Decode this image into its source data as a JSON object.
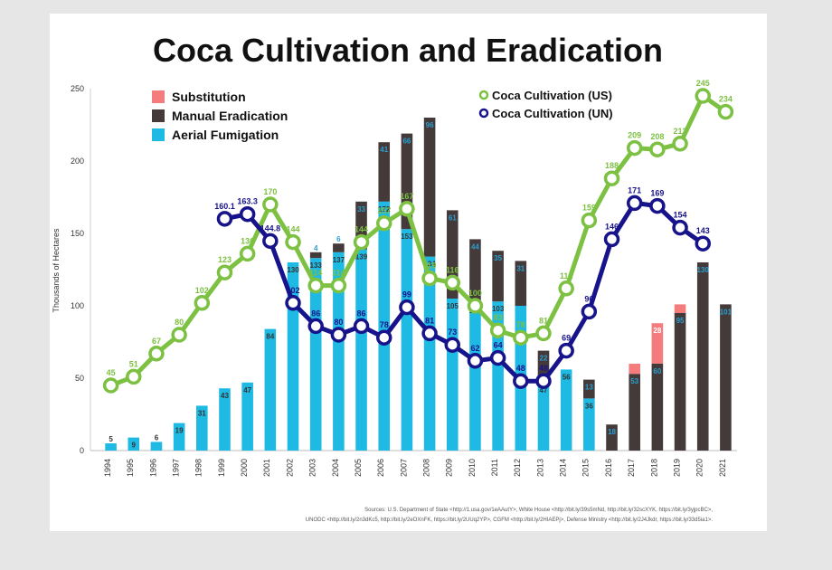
{
  "chart_data": {
    "type": "bar",
    "title": "Coca Cultivation and Eradication",
    "xlabel": "",
    "ylabel": "Thousands of Hectares",
    "ylim": [
      0,
      250
    ],
    "yticks": [
      "0",
      "50",
      "100",
      "150",
      "200",
      "250"
    ],
    "categories": [
      "1994",
      "1995",
      "1996",
      "1997",
      "1998",
      "1999",
      "2000",
      "2001",
      "2002",
      "2003",
      "2004",
      "2005",
      "2006",
      "2007",
      "2008",
      "2009",
      "2010",
      "2011",
      "2012",
      "2013",
      "2014",
      "2015",
      "2016",
      "2017",
      "2018",
      "2019",
      "2020",
      "2021"
    ],
    "legend": [
      {
        "name": "Substitution",
        "color": "#f47c7c",
        "kind": "square"
      },
      {
        "name": "Manual Eradication",
        "color": "#453a3a",
        "kind": "square"
      },
      {
        "name": "Aerial Fumigation",
        "color": "#1ebae4",
        "kind": "square"
      },
      {
        "name": "Coca Cultivation (US)",
        "color": "#7dc142",
        "kind": "circle"
      },
      {
        "name": "Coca Cultivation (UN)",
        "color": "#17138a",
        "kind": "circle"
      }
    ],
    "series": [
      {
        "name": "Aerial Fumigation",
        "type": "bar",
        "color": "#1ebae4",
        "values": [
          5,
          9,
          6,
          19,
          31,
          43,
          47,
          84,
          130,
          133,
          137,
          139,
          172,
          153,
          134,
          105,
          102,
          103,
          100,
          47,
          56,
          36,
          0,
          0,
          0,
          0,
          0,
          0
        ],
        "labels": [
          "5",
          "9",
          "6",
          "19",
          "31",
          "43",
          "47",
          "84",
          "130",
          "133",
          "137",
          "139",
          "172",
          "153",
          "134",
          "105",
          "102",
          "103",
          "",
          "47",
          "56",
          "36",
          "",
          "",
          "",
          "",
          "",
          ""
        ]
      },
      {
        "name": "Manual Eradication",
        "type": "bar",
        "color": "#453a3a",
        "values": [
          0,
          0,
          0,
          0,
          0,
          0,
          0,
          0,
          0,
          4,
          6,
          33,
          41,
          66,
          96,
          61,
          44,
          35,
          31,
          22,
          0,
          13,
          18,
          53,
          60,
          95,
          130,
          101
        ],
        "labels": [
          "",
          "",
          "",
          "",
          "",
          "",
          "",
          "",
          "",
          "4",
          "6",
          "33",
          "41",
          "66",
          "96",
          "61",
          "44",
          "35",
          "31",
          "22",
          "",
          "13",
          "18",
          "53",
          "60",
          "95",
          "130",
          "101"
        ]
      },
      {
        "name": "Substitution",
        "type": "bar",
        "color": "#f47c7c",
        "values": [
          0,
          0,
          0,
          0,
          0,
          0,
          0,
          0,
          0,
          0,
          0,
          0,
          0,
          0,
          0,
          0,
          0,
          0,
          0,
          0,
          0,
          0,
          0,
          7,
          28,
          6,
          0,
          0
        ],
        "labels": [
          "",
          "",
          "",
          "",
          "",
          "",
          "",
          "",
          "",
          "",
          "",
          "",
          "",
          "",
          "",
          "",
          "",
          "",
          "",
          "",
          "",
          "",
          "",
          "7",
          "28",
          "6",
          "",
          ""
        ]
      },
      {
        "name": "Coca Cultivation (US)",
        "type": "line",
        "color": "#7dc142",
        "values": [
          45,
          51,
          67,
          80,
          102,
          123,
          136,
          170,
          144,
          114,
          114,
          144,
          157,
          167,
          119,
          116,
          100,
          83,
          78,
          81,
          112,
          159,
          188,
          209,
          208,
          212,
          245,
          234
        ],
        "labels": [
          "45",
          "51",
          "67",
          "80",
          "102",
          "123",
          "136",
          "170",
          "144",
          "114",
          "114",
          "144",
          "157",
          "167",
          "119",
          "116",
          "100",
          "83",
          "78",
          "81",
          "112",
          "159",
          "188",
          "209",
          "208",
          "212",
          "245",
          "234"
        ]
      },
      {
        "name": "Coca Cultivation (UN)",
        "type": "line",
        "color": "#17138a",
        "values": [
          null,
          null,
          null,
          null,
          null,
          160.1,
          163.3,
          144.8,
          102,
          86,
          80,
          86,
          78,
          99,
          81,
          73,
          62,
          64,
          48,
          48,
          69,
          96,
          146,
          171,
          169,
          154,
          143,
          null
        ],
        "labels": [
          "",
          "",
          "",
          "",
          "",
          "160.1",
          "163.3",
          "144.8",
          "102",
          "86",
          "80",
          "86",
          "78",
          "99",
          "81",
          "73",
          "62",
          "64",
          "48",
          "48",
          "69",
          "96",
          "146",
          "171",
          "169",
          "154",
          "143",
          ""
        ]
      }
    ],
    "grid": false
  },
  "sources": {
    "line1": "Sources: U.S. Department of State <http://1.usa.gov/1eAAutY>, White House <http://bit.ly/39s5mNd, http://bit.ly/32scXYK, https://bit.ly/3yjpcBC>,",
    "line2": "UNODC <http://bit.ly/2n3dKc5, http://bit.ly/2eOXnFK, https://bit.ly/2UUq2YP>, CGFM <http://bit.ly/2HIAEPj>, Defense Ministry <http://bit.ly/2J4Jkdr, https://bit.ly/33d5ia1>."
  }
}
